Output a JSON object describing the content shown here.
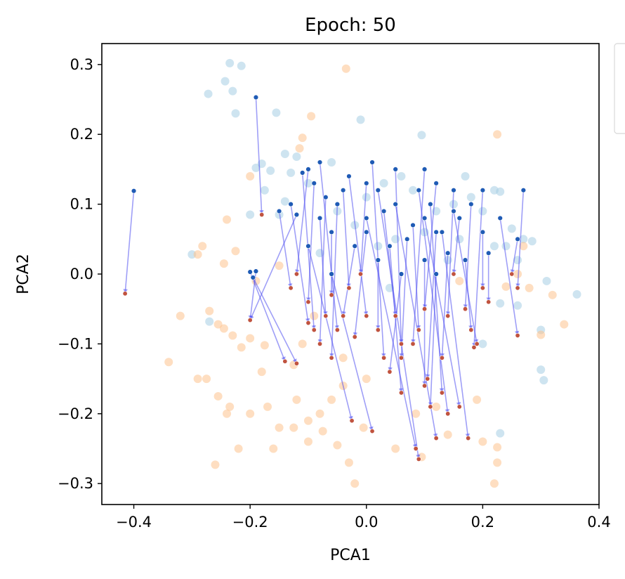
{
  "chart_data": {
    "type": "scatter",
    "title": "Epoch: 50",
    "xlabel": "PCA1",
    "ylabel": "PCA2",
    "xlim": [
      -0.455,
      0.4
    ],
    "ylim": [
      -0.33,
      0.33
    ],
    "xticks": [
      -0.4,
      -0.2,
      0.0,
      0.2,
      0.4
    ],
    "xtick_labels": [
      "−0.4",
      "−0.2",
      "0.0",
      "0.2",
      "0.4"
    ],
    "yticks": [
      0.3,
      0.2,
      0.1,
      0.0,
      -0.1,
      -0.2,
      -0.3
    ],
    "ytick_labels": [
      "0.3",
      "0.2",
      "0.1",
      "0.0",
      "−0.1",
      "−0.2",
      "−0.3"
    ],
    "grid": false,
    "colors": {
      "class_a": "#a6cde3",
      "class_b": "#fdc28e",
      "start": "#1f5bb5",
      "end": "#c0533f",
      "arrow": "#5050f0"
    },
    "class_a_points": [
      [
        -0.235,
        0.302
      ],
      [
        -0.215,
        0.298
      ],
      [
        -0.272,
        0.258
      ],
      [
        -0.243,
        0.276
      ],
      [
        -0.23,
        0.262
      ],
      [
        -0.225,
        0.23
      ],
      [
        -0.155,
        0.231
      ],
      [
        -0.01,
        0.221
      ],
      [
        0.095,
        0.199
      ],
      [
        -0.12,
        0.168
      ],
      [
        -0.18,
        0.158
      ],
      [
        -0.19,
        0.152
      ],
      [
        -0.165,
        0.148
      ],
      [
        -0.14,
        0.172
      ],
      [
        -0.1,
        0.13
      ],
      [
        -0.13,
        0.145
      ],
      [
        0.03,
        0.13
      ],
      [
        0.06,
        0.14
      ],
      [
        -0.175,
        0.12
      ],
      [
        -0.14,
        0.104
      ],
      [
        0.15,
        0.1
      ],
      [
        0.18,
        0.11
      ],
      [
        0.22,
        0.12
      ],
      [
        0.23,
        0.118
      ],
      [
        0.25,
        0.065
      ],
      [
        0.27,
        0.05
      ],
      [
        0.285,
        0.047
      ],
      [
        -0.3,
        0.028
      ],
      [
        -0.27,
        -0.068
      ],
      [
        -0.2,
        0.085
      ],
      [
        -0.15,
        0.085
      ],
      [
        0.2,
        0.09
      ],
      [
        0.22,
        0.04
      ],
      [
        0.24,
        0.04
      ],
      [
        0.26,
        0.02
      ],
      [
        0.31,
        -0.01
      ],
      [
        0.3,
        -0.08
      ],
      [
        0.362,
        -0.029
      ],
      [
        0.26,
        -0.045
      ],
      [
        0.2,
        -0.1
      ],
      [
        0.3,
        -0.137
      ],
      [
        0.305,
        -0.152
      ],
      [
        0.23,
        -0.228
      ],
      [
        0.23,
        -0.042
      ],
      [
        0.05,
        0.05
      ],
      [
        0.0,
        0.11
      ],
      [
        -0.05,
        0.09
      ],
      [
        0.1,
        0.06
      ],
      [
        0.12,
        0.09
      ],
      [
        0.16,
        0.05
      ],
      [
        -0.02,
        0.07
      ],
      [
        0.08,
        0.12
      ],
      [
        -0.08,
        0.03
      ],
      [
        0.14,
        0.02
      ],
      [
        0.04,
        -0.02
      ],
      [
        0.17,
        0.14
      ],
      [
        -0.06,
        0.16
      ],
      [
        0.02,
        0.04
      ]
    ],
    "class_b_points": [
      [
        -0.035,
        0.294
      ],
      [
        -0.095,
        0.226
      ],
      [
        -0.11,
        0.195
      ],
      [
        -0.115,
        0.18
      ],
      [
        0.225,
        0.2
      ],
      [
        -0.24,
        0.078
      ],
      [
        -0.282,
        0.04
      ],
      [
        -0.29,
        0.028
      ],
      [
        -0.245,
        0.015
      ],
      [
        -0.225,
        0.033
      ],
      [
        -0.19,
        -0.01
      ],
      [
        -0.15,
        0.012
      ],
      [
        -0.27,
        -0.053
      ],
      [
        -0.255,
        -0.072
      ],
      [
        -0.245,
        -0.078
      ],
      [
        -0.23,
        -0.088
      ],
      [
        -0.2,
        -0.092
      ],
      [
        -0.175,
        -0.102
      ],
      [
        -0.215,
        -0.105
      ],
      [
        -0.34,
        -0.126
      ],
      [
        -0.29,
        -0.15
      ],
      [
        -0.275,
        -0.15
      ],
      [
        -0.255,
        -0.175
      ],
      [
        -0.235,
        -0.19
      ],
      [
        -0.2,
        -0.2
      ],
      [
        -0.17,
        -0.19
      ],
      [
        -0.15,
        -0.22
      ],
      [
        -0.125,
        -0.22
      ],
      [
        -0.1,
        -0.21
      ],
      [
        -0.08,
        -0.2
      ],
      [
        -0.06,
        -0.18
      ],
      [
        -0.04,
        -0.16
      ],
      [
        -0.1,
        -0.24
      ],
      [
        -0.075,
        -0.225
      ],
      [
        -0.05,
        -0.245
      ],
      [
        -0.03,
        -0.27
      ],
      [
        -0.02,
        -0.3
      ],
      [
        -0.005,
        -0.22
      ],
      [
        -0.26,
        -0.273
      ],
      [
        -0.16,
        -0.25
      ],
      [
        -0.22,
        -0.25
      ],
      [
        -0.24,
        -0.2
      ],
      [
        -0.125,
        -0.13
      ],
      [
        -0.11,
        -0.1
      ],
      [
        -0.09,
        -0.06
      ],
      [
        0.24,
        -0.018
      ],
      [
        0.26,
        0.0
      ],
      [
        0.28,
        -0.02
      ],
      [
        0.32,
        -0.03
      ],
      [
        0.34,
        -0.072
      ],
      [
        0.3,
        -0.087
      ],
      [
        0.22,
        -0.3
      ],
      [
        0.225,
        -0.27
      ],
      [
        0.225,
        -0.248
      ],
      [
        0.095,
        -0.262
      ],
      [
        0.085,
        -0.2
      ],
      [
        0.12,
        -0.19
      ],
      [
        0.2,
        -0.24
      ],
      [
        0.19,
        -0.18
      ],
      [
        0.16,
        -0.01
      ],
      [
        0.27,
        0.04
      ],
      [
        -0.12,
        -0.18
      ],
      [
        -0.32,
        -0.06
      ],
      [
        -0.04,
        -0.12
      ],
      [
        0.0,
        -0.15
      ],
      [
        0.05,
        -0.25
      ],
      [
        0.14,
        -0.23
      ],
      [
        -0.2,
        0.14
      ],
      [
        -0.18,
        -0.14
      ]
    ],
    "trajectories": [
      [
        -0.4,
        0.119,
        -0.415,
        -0.028
      ],
      [
        -0.19,
        0.253,
        -0.18,
        0.085
      ],
      [
        -0.2,
        0.003,
        -0.14,
        -0.125
      ],
      [
        -0.195,
        -0.005,
        -0.12,
        -0.128
      ],
      [
        -0.19,
        0.004,
        -0.2,
        -0.066
      ],
      [
        -0.12,
        0.085,
        -0.2,
        -0.066
      ],
      [
        -0.1,
        0.04,
        -0.025,
        -0.21
      ],
      [
        -0.06,
        0.0,
        0.01,
        -0.225
      ],
      [
        0.0,
        0.08,
        0.085,
        -0.25
      ],
      [
        0.02,
        0.12,
        0.09,
        -0.265
      ],
      [
        0.05,
        0.1,
        0.12,
        -0.235
      ],
      [
        0.09,
        0.12,
        0.14,
        -0.2
      ],
      [
        0.1,
        0.08,
        0.16,
        -0.19
      ],
      [
        0.13,
        0.06,
        0.175,
        -0.235
      ],
      [
        0.15,
        0.09,
        0.19,
        -0.1
      ],
      [
        0.2,
        0.12,
        0.185,
        -0.105
      ],
      [
        0.23,
        0.08,
        0.26,
        -0.088
      ],
      [
        0.27,
        0.12,
        0.26,
        -0.02
      ],
      [
        0.26,
        0.05,
        0.25,
        0.0
      ],
      [
        0.11,
        0.1,
        0.13,
        -0.17
      ],
      [
        0.12,
        0.06,
        0.105,
        -0.15
      ],
      [
        0.07,
        0.05,
        0.06,
        -0.12
      ],
      [
        0.0,
        0.06,
        -0.02,
        -0.09
      ],
      [
        -0.05,
        0.1,
        -0.06,
        -0.12
      ],
      [
        -0.07,
        0.11,
        -0.08,
        -0.1
      ],
      [
        -0.09,
        0.13,
        -0.1,
        -0.04
      ],
      [
        -0.1,
        0.15,
        -0.12,
        0.0
      ],
      [
        -0.11,
        0.145,
        -0.09,
        -0.08
      ],
      [
        -0.08,
        0.16,
        -0.05,
        -0.08
      ],
      [
        -0.03,
        0.14,
        0.0,
        -0.06
      ],
      [
        0.01,
        0.16,
        0.03,
        -0.12
      ],
      [
        0.05,
        0.15,
        0.06,
        -0.1
      ],
      [
        0.1,
        0.15,
        0.08,
        -0.1
      ],
      [
        0.12,
        0.13,
        0.1,
        -0.05
      ],
      [
        0.15,
        0.12,
        0.14,
        -0.06
      ],
      [
        0.18,
        0.1,
        0.17,
        -0.05
      ],
      [
        0.2,
        0.06,
        0.2,
        -0.02
      ],
      [
        0.17,
        0.02,
        0.18,
        -0.08
      ],
      [
        0.14,
        0.03,
        0.13,
        -0.12
      ],
      [
        0.1,
        0.02,
        0.1,
        -0.16
      ],
      [
        0.06,
        0.0,
        0.04,
        -0.14
      ],
      [
        0.02,
        0.02,
        0.02,
        -0.08
      ],
      [
        -0.02,
        0.04,
        -0.04,
        -0.06
      ],
      [
        -0.06,
        0.06,
        -0.06,
        -0.03
      ],
      [
        -0.08,
        0.08,
        -0.07,
        -0.06
      ],
      [
        -0.04,
        0.12,
        -0.03,
        -0.02
      ],
      [
        0.03,
        0.09,
        0.05,
        -0.06
      ],
      [
        0.08,
        0.07,
        0.09,
        -0.08
      ],
      [
        0.16,
        0.08,
        0.15,
        0.0
      ],
      [
        0.21,
        0.03,
        0.21,
        -0.04
      ],
      [
        -0.15,
        0.09,
        -0.13,
        -0.02
      ],
      [
        -0.13,
        0.1,
        -0.1,
        -0.07
      ],
      [
        0.0,
        0.13,
        -0.01,
        0.0
      ],
      [
        0.04,
        0.04,
        0.06,
        -0.17
      ],
      [
        0.12,
        0.0,
        0.11,
        -0.19
      ]
    ]
  }
}
